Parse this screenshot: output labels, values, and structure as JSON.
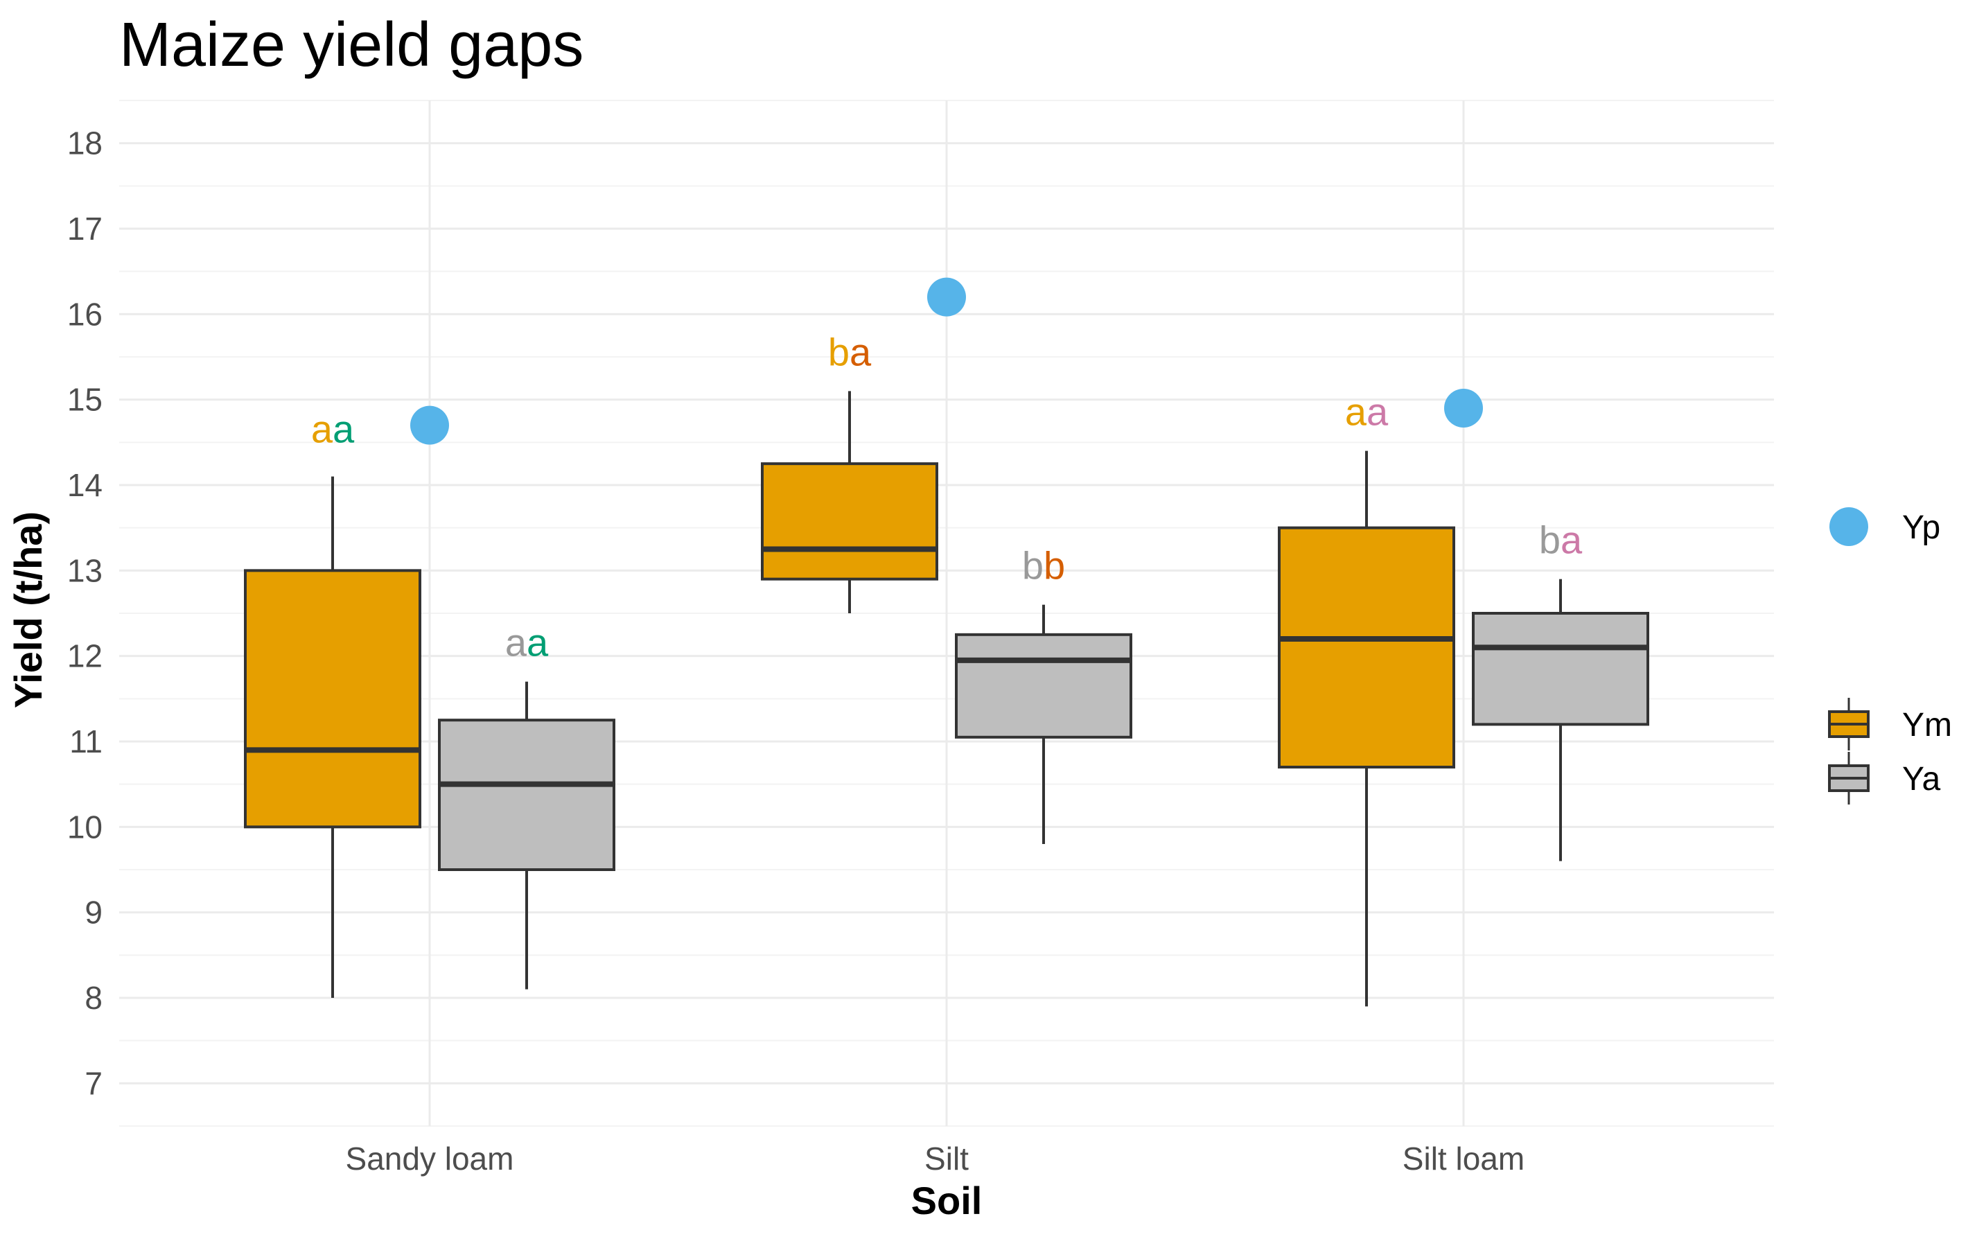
{
  "chart_data": {
    "type": "box",
    "title": "Maize yield gaps",
    "xlabel": "Soil",
    "ylabel": "Yield (t/ha)",
    "ylim": [
      6.5,
      18.5
    ],
    "yticks": [
      7,
      8,
      9,
      10,
      11,
      12,
      13,
      14,
      15,
      16,
      17,
      18
    ],
    "categories": [
      "Sandy loam",
      "Silt",
      "Silt loam"
    ],
    "colors": {
      "Ym": "#E69F00",
      "Ya": "#BEBEBE",
      "Yp": "#56B4E9",
      "outline": "#333333"
    },
    "series": [
      {
        "name": "Ym",
        "boxes": [
          {
            "min": 8.0,
            "q1": 10.0,
            "median": 10.9,
            "q3": 13.0,
            "max": 14.1
          },
          {
            "min": 12.5,
            "q1": 12.9,
            "median": 13.25,
            "q3": 14.25,
            "max": 15.1
          },
          {
            "min": 7.9,
            "q1": 10.7,
            "median": 12.2,
            "q3": 13.5,
            "max": 14.4
          }
        ]
      },
      {
        "name": "Ya",
        "boxes": [
          {
            "min": 8.1,
            "q1": 9.5,
            "median": 10.5,
            "q3": 11.25,
            "max": 11.7
          },
          {
            "min": 9.8,
            "q1": 11.05,
            "median": 11.95,
            "q3": 12.25,
            "max": 12.6
          },
          {
            "min": 9.6,
            "q1": 11.2,
            "median": 12.1,
            "q3": 12.5,
            "max": 12.9
          }
        ]
      }
    ],
    "points": {
      "name": "Yp",
      "values": [
        14.7,
        16.2,
        14.9
      ]
    },
    "annotations": [
      {
        "category": 0,
        "series": "Ym",
        "y": 14.5,
        "parts": [
          {
            "text": "a",
            "color": "#E69F00"
          },
          {
            "text": "a",
            "color": "#009E73"
          }
        ]
      },
      {
        "category": 0,
        "series": "Ya",
        "y": 12.0,
        "parts": [
          {
            "text": "a",
            "color": "#999999"
          },
          {
            "text": "a",
            "color": "#009E73"
          }
        ]
      },
      {
        "category": 1,
        "series": "Ym",
        "y": 15.4,
        "parts": [
          {
            "text": "b",
            "color": "#E69F00"
          },
          {
            "text": "a",
            "color": "#D55E00"
          }
        ]
      },
      {
        "category": 1,
        "series": "Ya",
        "y": 12.9,
        "parts": [
          {
            "text": "b",
            "color": "#999999"
          },
          {
            "text": "b",
            "color": "#D55E00"
          }
        ]
      },
      {
        "category": 2,
        "series": "Ym",
        "y": 14.7,
        "parts": [
          {
            "text": "a",
            "color": "#E69F00"
          },
          {
            "text": "a",
            "color": "#CC79A7"
          }
        ]
      },
      {
        "category": 2,
        "series": "Ya",
        "y": 13.2,
        "parts": [
          {
            "text": "b",
            "color": "#999999"
          },
          {
            "text": "a",
            "color": "#CC79A7"
          }
        ]
      }
    ],
    "legend": {
      "position": "right",
      "items": [
        {
          "key": "Yp",
          "label": "Yp",
          "kind": "point"
        },
        {
          "key": "Ym",
          "label": "Ym",
          "kind": "box"
        },
        {
          "key": "Ya",
          "label": "Ya",
          "kind": "box"
        }
      ]
    },
    "grid": true
  }
}
